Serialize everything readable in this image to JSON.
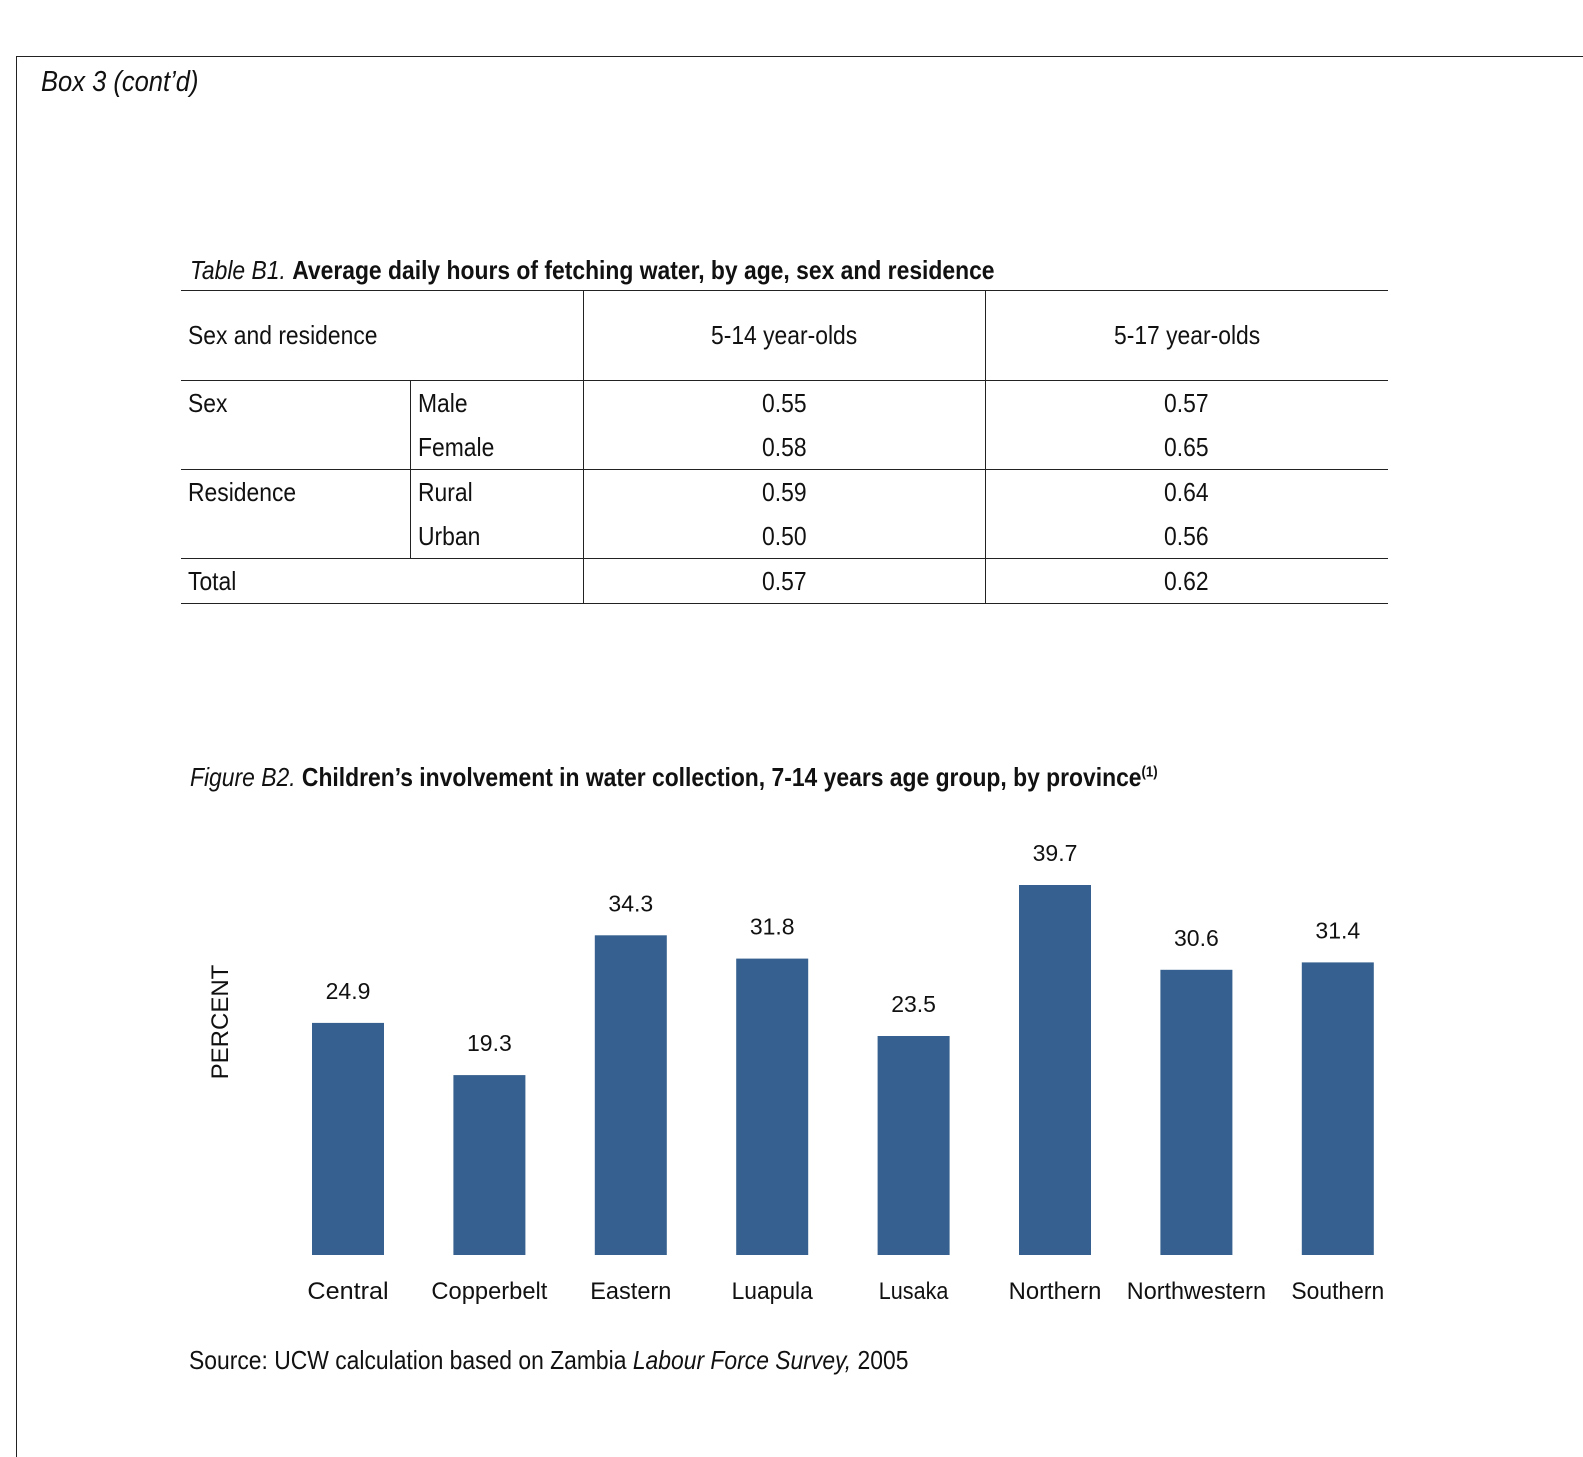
{
  "box_title": "Box 3 (cont’d)",
  "table": {
    "caption_prefix": "Table B1.",
    "caption_text": "Average daily hours of fetching water, by age, sex and residence",
    "header": {
      "group": "Sex and residence",
      "col1": "5-14 year-olds",
      "col2": "5-17 year-olds"
    },
    "sex_label": "Sex",
    "residence_label": "Residence",
    "total_label": "Total",
    "rows": {
      "male": {
        "label": "Male",
        "v1": "0.55",
        "v2": "0.57"
      },
      "female": {
        "label": "Female",
        "v1": "0.58",
        "v2": "0.65"
      },
      "rural": {
        "label": "Rural",
        "v1": "0.59",
        "v2": "0.64"
      },
      "urban": {
        "label": "Urban",
        "v1": "0.50",
        "v2": "0.56"
      },
      "total": {
        "v1": "0.57",
        "v2": "0.62"
      }
    }
  },
  "figure": {
    "caption_prefix": "Figure B2.",
    "caption_text": "Children’s involvement in water collection, 7-14 years age group, by province",
    "caption_note": "(1)"
  },
  "chart_data": {
    "type": "bar",
    "title": "Children’s involvement in water collection, 7-14 years age group, by province",
    "ylabel": "PERCENT",
    "xlabel": "",
    "categories": [
      "Central",
      "Copperbelt",
      "Eastern",
      "Luapula",
      "Lusaka",
      "Northern",
      "Northwestern",
      "Southern"
    ],
    "values": [
      24.9,
      19.3,
      34.3,
      31.8,
      23.5,
      39.7,
      30.6,
      31.4
    ],
    "value_labels": [
      "24.9",
      "19.3",
      "34.3",
      "31.8",
      "23.5",
      "39.7",
      "30.6",
      "31.4"
    ],
    "ylim": [
      0,
      39.7
    ],
    "grid": false,
    "bar_color": "#36608f"
  },
  "source": {
    "prefix": "Source: UCW calculation based on Zambia ",
    "italic": "Labour Force Survey,",
    "suffix": " 2005"
  }
}
